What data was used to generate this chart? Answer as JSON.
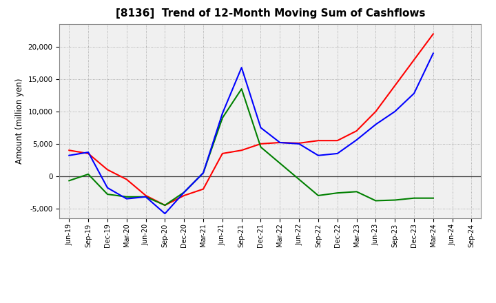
{
  "title": "[8136]  Trend of 12-Month Moving Sum of Cashflows",
  "ylabel": "Amount (million yen)",
  "x_labels": [
    "Jun-19",
    "Sep-19",
    "Dec-19",
    "Mar-20",
    "Jun-20",
    "Sep-20",
    "Dec-20",
    "Mar-21",
    "Jun-21",
    "Sep-21",
    "Dec-21",
    "Mar-22",
    "Jun-22",
    "Sep-22",
    "Dec-22",
    "Mar-23",
    "Jun-23",
    "Sep-23",
    "Dec-23",
    "Mar-24",
    "Jun-24",
    "Sep-24"
  ],
  "operating_cashflow": [
    4000,
    3500,
    1000,
    -500,
    -3000,
    -4500,
    -3000,
    -2000,
    3500,
    4000,
    5000,
    5200,
    5100,
    5500,
    5500,
    7000,
    10000,
    14000,
    18000,
    22000,
    null,
    null
  ],
  "investing_cashflow": [
    -700,
    300,
    -2800,
    -3200,
    -3200,
    -4500,
    -2500,
    500,
    9000,
    13500,
    4500,
    2000,
    -500,
    -3000,
    -2600,
    -2400,
    -3800,
    -3700,
    -3400,
    -3400,
    null,
    null
  ],
  "free_cashflow": [
    3200,
    3700,
    -1800,
    -3500,
    -3200,
    -5800,
    -2500,
    500,
    9700,
    16800,
    7500,
    5200,
    5000,
    3200,
    3500,
    5600,
    8000,
    10000,
    12800,
    19000,
    null,
    null
  ],
  "operating_color": "#ff0000",
  "investing_color": "#008000",
  "free_color": "#0000ff",
  "bg_color": "#ffffff",
  "plot_bg_color": "#f0f0f0",
  "grid_color": "#999999",
  "ylim": [
    -6500,
    23500
  ],
  "yticks": [
    -5000,
    0,
    5000,
    10000,
    15000,
    20000
  ]
}
